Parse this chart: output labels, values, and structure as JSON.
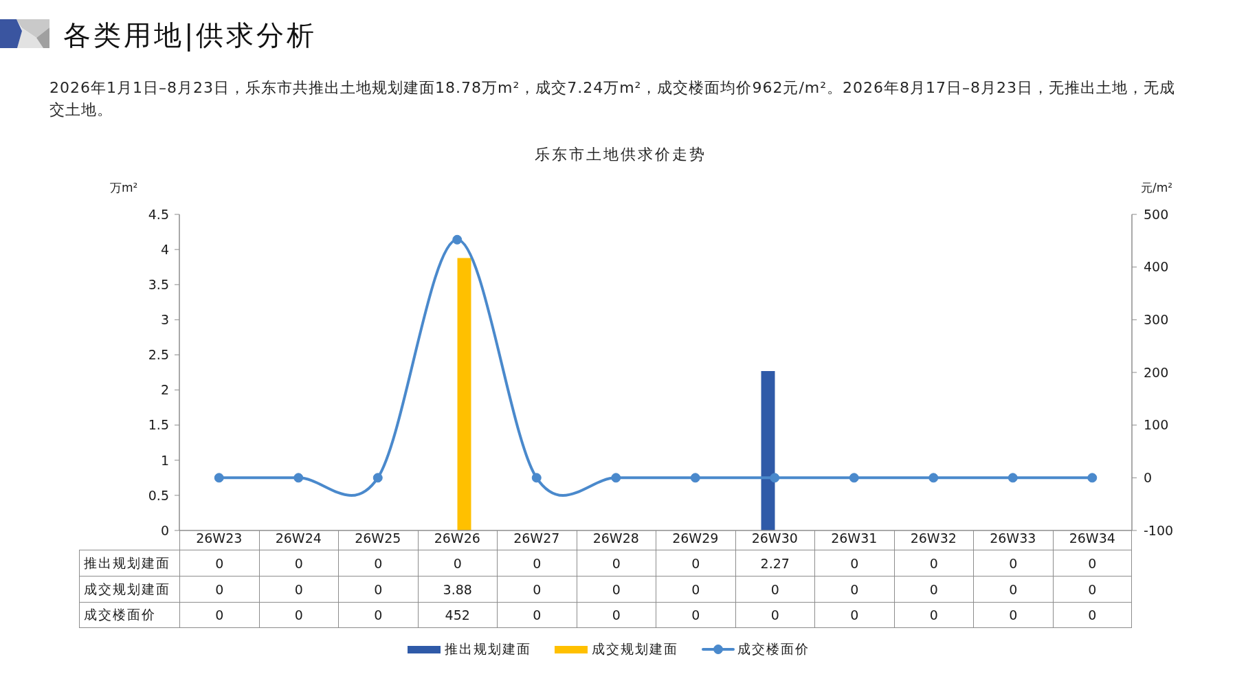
{
  "chart_data": {
    "type": "bar",
    "title": "各类用地|供求分析",
    "subtitle": "乐东市土地供求价走势",
    "annotations": [
      "2026年1月1日–8月23日，乐东市共推出土地规划建面18.78万m²，成交7.24万m²，成交楼面均价962元/m²。2026年8月17日–8月23日，无推出土地，无成交土地。"
    ],
    "ylabel": "万m²",
    "y2label": "元/m²",
    "categories": [
      "26W23",
      "26W24",
      "26W25",
      "26W26",
      "26W27",
      "26W28",
      "26W29",
      "26W30",
      "26W31",
      "26W32",
      "26W33",
      "26W34"
    ],
    "series": [
      {
        "name": "推出规划建面",
        "color": "#2f5aa8",
        "values": [
          0,
          0,
          0,
          0,
          0,
          0,
          0,
          2.27,
          0,
          0,
          0,
          0
        ]
      },
      {
        "name": "成交规划建面",
        "color": "#ffc000",
        "values": [
          0,
          0,
          0,
          3.88,
          0,
          0,
          0,
          0,
          0,
          0,
          0,
          0
        ]
      },
      {
        "name": "成交楼面价",
        "type": "line",
        "axis": "y2",
        "color": "#4a89cc",
        "values": [
          0,
          0,
          0,
          452,
          0,
          0,
          0,
          0,
          0,
          0,
          0,
          0
        ]
      }
    ],
    "ylim": [
      0,
      4.5
    ],
    "yticks": [
      0,
      0.5,
      1,
      1.5,
      2,
      2.5,
      3,
      3.5,
      4,
      4.5
    ],
    "y2lim": [
      -100,
      500
    ],
    "y2ticks": [
      -100,
      0,
      100,
      200,
      300,
      400,
      500
    ],
    "data_labels": true,
    "legend": "bottom",
    "marker": "circle",
    "line_style": "solid"
  }
}
